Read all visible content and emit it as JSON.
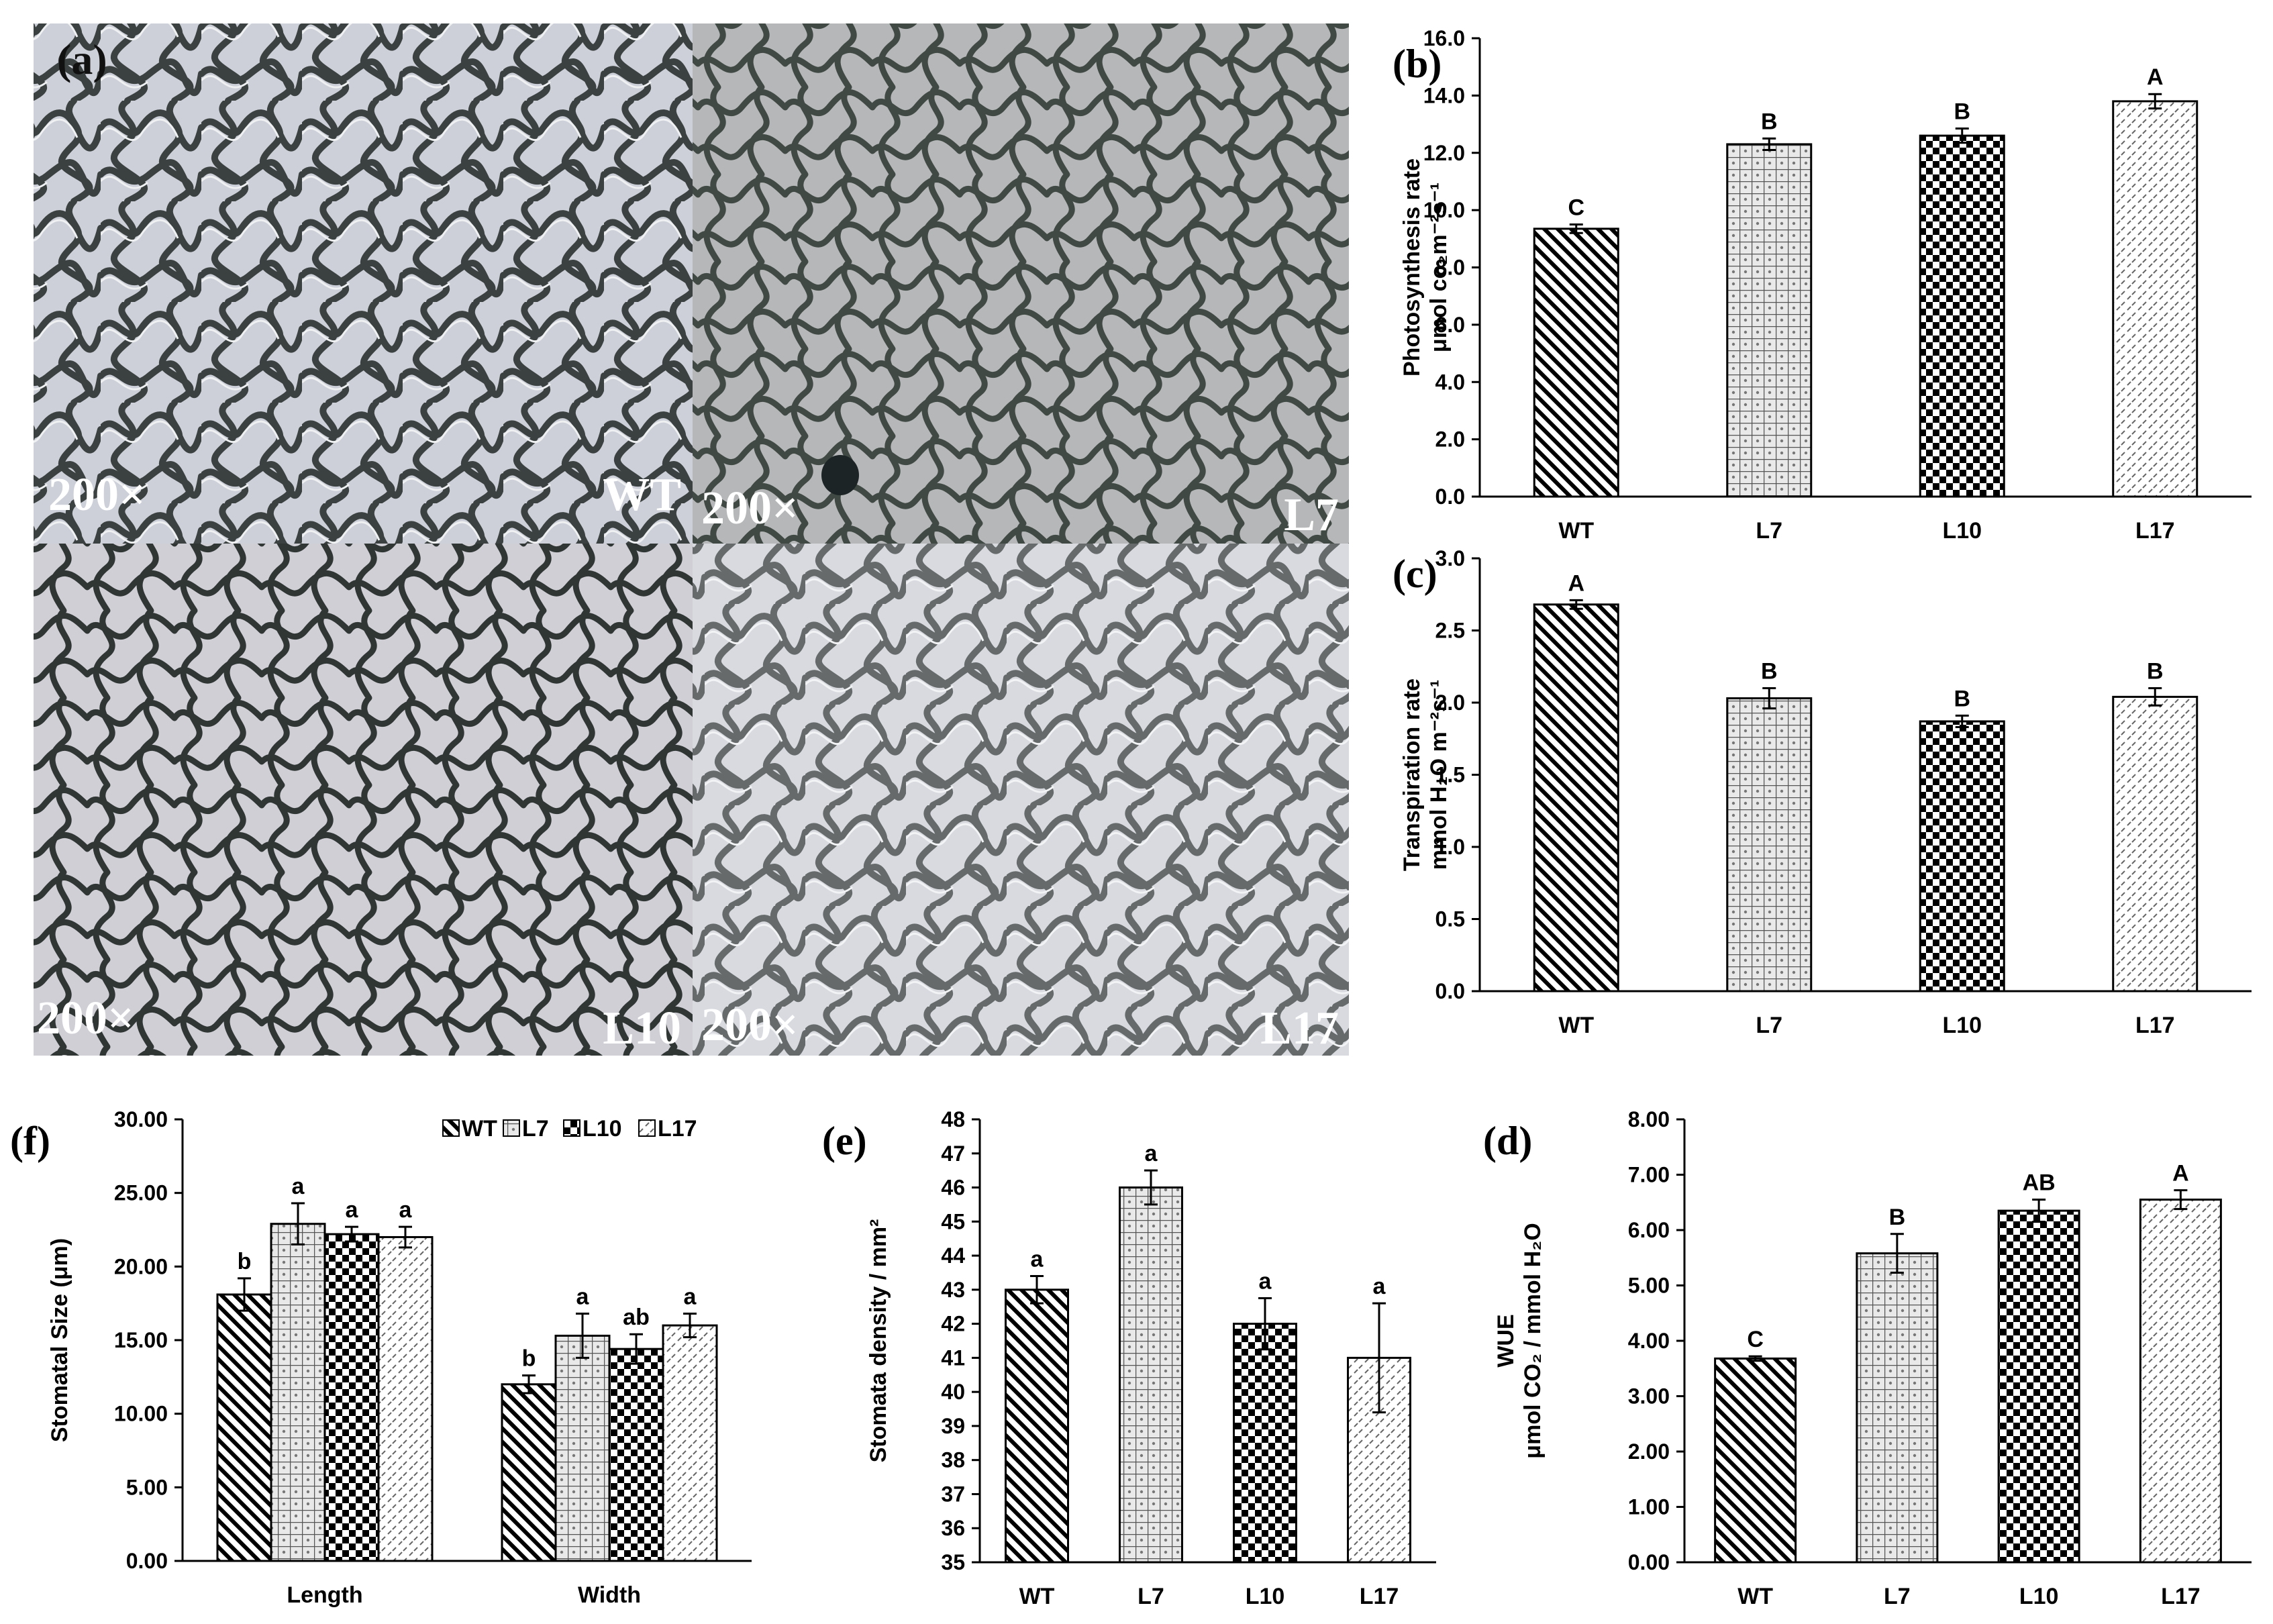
{
  "micrograph": {
    "panel_label": "(a)",
    "tiles": [
      {
        "magnification": "200×",
        "line": "WT"
      },
      {
        "magnification": "200×",
        "line": "L7"
      },
      {
        "magnification": "200×",
        "line": "L10"
      },
      {
        "magnification": "200×",
        "line": "L17"
      }
    ]
  },
  "patterns": {
    "WT": "diagonal-hatch",
    "L7": "light-grid-dots",
    "L10": "checkerboard",
    "L17": "light-diagonal-dashes"
  },
  "chart_data": [
    {
      "panel": "(b)",
      "type": "bar",
      "ylabel_lines": [
        "Photosynthesis rate",
        "μmol co₂m⁻²s⁻¹"
      ],
      "categories": [
        "WT",
        "L7",
        "L10",
        "L17"
      ],
      "values": [
        9.35,
        12.3,
        12.6,
        13.8
      ],
      "errors": [
        0.15,
        0.2,
        0.25,
        0.25
      ],
      "letters": [
        "C",
        "B",
        "B",
        "A"
      ],
      "ylim": [
        0,
        16
      ],
      "yticks": [
        "0.0",
        "2.0",
        "4.0",
        "6.0",
        "8.0",
        "10.0",
        "12.0",
        "14.0",
        "16.0"
      ]
    },
    {
      "panel": "(c)",
      "type": "bar",
      "ylabel_lines": [
        "Transpiration rate",
        "mmol H₂O m⁻²s⁻¹"
      ],
      "categories": [
        "WT",
        "L7",
        "L10",
        "L17"
      ],
      "values": [
        2.68,
        2.03,
        1.87,
        2.04
      ],
      "errors": [
        0.03,
        0.07,
        0.04,
        0.06
      ],
      "letters": [
        "A",
        "B",
        "B",
        "B"
      ],
      "ylim": [
        0,
        3
      ],
      "yticks": [
        "0.0",
        "0.5",
        "1.0",
        "1.5",
        "2.0",
        "2.5",
        "3.0"
      ]
    },
    {
      "panel": "(f)",
      "type": "bar",
      "ylabel_lines": [
        "Stomatal Size (μm)"
      ],
      "categories": [
        "Length",
        "Width"
      ],
      "series": [
        {
          "name": "WT",
          "values": [
            18.1,
            12.0
          ],
          "errors": [
            1.1,
            0.6
          ],
          "letters": [
            "b",
            "b"
          ]
        },
        {
          "name": "L7",
          "values": [
            22.9,
            15.3
          ],
          "errors": [
            1.4,
            1.5
          ],
          "letters": [
            "a",
            "a"
          ]
        },
        {
          "name": "L10",
          "values": [
            22.2,
            14.4
          ],
          "errors": [
            0.5,
            1.0
          ],
          "letters": [
            "a",
            "ab"
          ]
        },
        {
          "name": "L17",
          "values": [
            22.0,
            16.0
          ],
          "errors": [
            0.7,
            0.8
          ],
          "letters": [
            "a",
            "a"
          ]
        }
      ],
      "ylim": [
        0,
        30
      ],
      "yticks": [
        "0.00",
        "5.00",
        "10.00",
        "15.00",
        "20.00",
        "25.00",
        "30.00"
      ],
      "legend": "top-right"
    },
    {
      "panel": "(e)",
      "type": "bar",
      "ylabel_lines": [
        "Stomata density / mm²"
      ],
      "categories": [
        "WT",
        "L7",
        "L10",
        "L17"
      ],
      "values": [
        43.0,
        46.0,
        42.0,
        41.0
      ],
      "errors": [
        0.4,
        0.5,
        0.75,
        1.6
      ],
      "letters": [
        "a",
        "a",
        "a",
        "a"
      ],
      "ylim": [
        35,
        48
      ],
      "yticks": [
        "35",
        "36",
        "37",
        "38",
        "39",
        "40",
        "41",
        "42",
        "43",
        "44",
        "45",
        "46",
        "47",
        "48"
      ]
    },
    {
      "panel": "(d)",
      "type": "bar",
      "ylabel_lines": [
        "WUE",
        "μmol CO₂ / mmol H₂O"
      ],
      "categories": [
        "WT",
        "L7",
        "L10",
        "L17"
      ],
      "values": [
        3.68,
        5.58,
        6.35,
        6.55
      ],
      "errors": [
        0.04,
        0.35,
        0.2,
        0.17
      ],
      "letters": [
        "C",
        "B",
        "AB",
        "A"
      ],
      "ylim": [
        0,
        8
      ],
      "yticks": [
        "0.00",
        "1.00",
        "2.00",
        "3.00",
        "4.00",
        "5.00",
        "6.00",
        "7.00",
        "8.00"
      ]
    }
  ]
}
